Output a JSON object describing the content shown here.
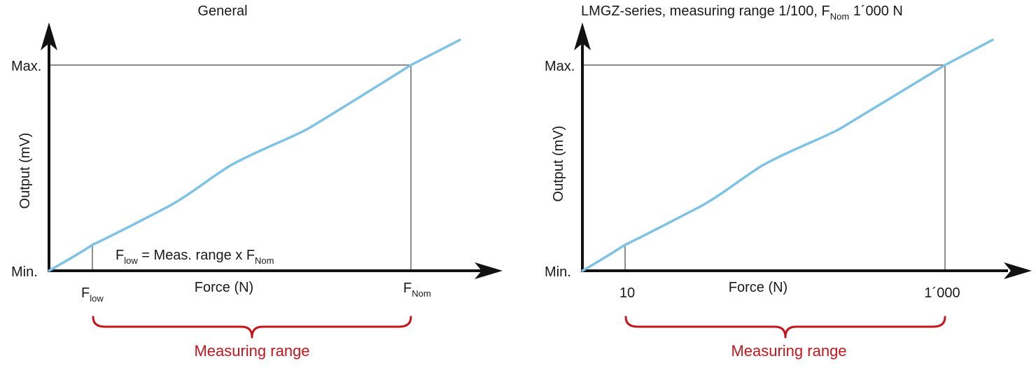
{
  "colors": {
    "curve": "#7ec3e6",
    "brace": "#c4161c",
    "axis": "#111111"
  },
  "left": {
    "title": "General",
    "y_axis_label": "Output (mV)",
    "y_max_label": "Max.",
    "y_min_label": "Min.",
    "x_axis_label": "Force (N)",
    "f_low_main": "F",
    "f_low_sub": "low",
    "f_nom_main": "F",
    "f_nom_sub": "Nom",
    "formula": {
      "f": "F",
      "low_sub": "low",
      "middle": " = Meas. range x F",
      "nom_sub": "Nom"
    },
    "brace_label": "Measuring range"
  },
  "right": {
    "title_main": "LMGZ-series, measuring range 1/100, F",
    "title_sub": "Nom",
    "title_end": " 1´000 N",
    "y_axis_label": "Output (mV)",
    "y_max_label": "Max.",
    "y_min_label": "Min.",
    "x_axis_label": "Force (N)",
    "x_tick_low": "10",
    "x_tick_high": "1´000",
    "brace_label": "Measuring range"
  }
}
